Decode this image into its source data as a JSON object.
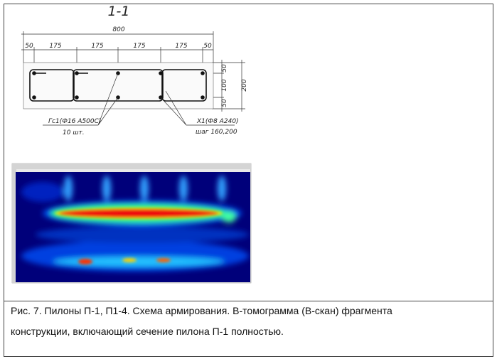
{
  "section": {
    "title": "1-1",
    "overall_width": 800,
    "segment_widths": [
      50,
      175,
      175,
      175,
      175,
      50
    ],
    "heights": [
      50,
      100,
      50
    ],
    "overall_height": 200,
    "rebar_label": "Гс1(Ф16 А500С)",
    "rebar_count": "10 шт.",
    "stirrup_label": "Х1(Ф8 А240)",
    "stirrup_pitch": "шаг 160,200"
  },
  "caption": {
    "lines": [
      "Рис. 7. Пилоны П-1, П1-4. Схема армирования. В-томограмма (В-скан) фрагмента",
      "конструкции, включающий сечение пилона П-1 полностью."
    ]
  }
}
